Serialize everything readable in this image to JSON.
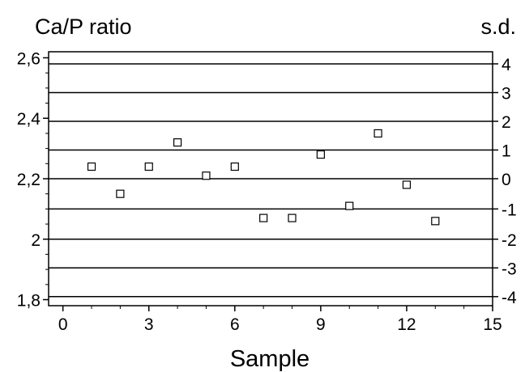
{
  "chart_data": {
    "type": "scatter",
    "ylabel_left": "Ca/P ratio",
    "ylabel_right": "s.d.",
    "xlabel": "Sample",
    "xlim": [
      -0.5,
      15
    ],
    "ylim": [
      1.78,
      2.62
    ],
    "x_ticks": [
      0,
      3,
      6,
      9,
      12,
      15
    ],
    "x_tick_labels": [
      "0",
      "3",
      "6",
      "9",
      "12",
      "15"
    ],
    "y_ticks": [
      1.8,
      2.0,
      2.2,
      2.4,
      2.6
    ],
    "y_tick_labels": [
      "1,8",
      "2",
      "2,2",
      "2,4",
      "2,6"
    ],
    "sd_ticks": [
      -4,
      -3,
      -2,
      -1,
      0,
      1,
      2,
      3,
      4
    ],
    "sd_tick_labels": [
      "-4",
      "-3",
      "-2",
      "-1",
      "0",
      "1",
      "2",
      "3",
      "4"
    ],
    "sd_lines_y": [
      1.81,
      1.905,
      2.0,
      2.1,
      2.2,
      2.295,
      2.39,
      2.485,
      2.58
    ],
    "marker": "open-square",
    "grid": "horizontal lines at each s.d. level",
    "points": [
      {
        "x": 1,
        "y": 2.24
      },
      {
        "x": 2,
        "y": 2.15
      },
      {
        "x": 3,
        "y": 2.24
      },
      {
        "x": 4,
        "y": 2.32
      },
      {
        "x": 5,
        "y": 2.21
      },
      {
        "x": 6,
        "y": 2.24
      },
      {
        "x": 7,
        "y": 2.07
      },
      {
        "x": 8,
        "y": 2.07
      },
      {
        "x": 9,
        "y": 2.28
      },
      {
        "x": 10,
        "y": 2.11
      },
      {
        "x": 11,
        "y": 2.35
      },
      {
        "x": 12,
        "y": 2.18
      },
      {
        "x": 13,
        "y": 2.06
      }
    ]
  }
}
